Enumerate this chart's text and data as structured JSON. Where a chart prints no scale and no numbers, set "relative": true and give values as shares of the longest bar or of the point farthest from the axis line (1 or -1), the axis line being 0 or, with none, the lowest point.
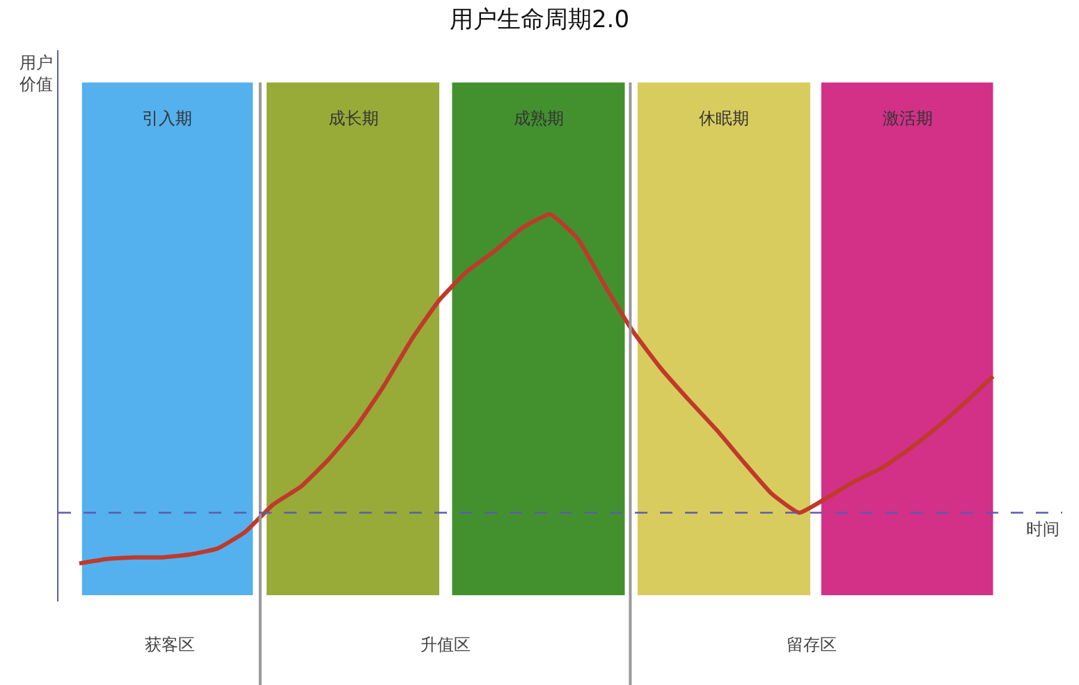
{
  "chart_data": {
    "type": "line",
    "title": "用户生命周期2.0",
    "xlabel": "时间",
    "relative": true,
    "categories": [
      null,
      null,
      null,
      null,
      null,
      null,
      null,
      null,
      null,
      null,
      null,
      null,
      null,
      null,
      null,
      null,
      null,
      null,
      null,
      null,
      null,
      null,
      null,
      null,
      null,
      null,
      null,
      null,
      null,
      null,
      null,
      null,
      null,
      null
    ],
    "series": [
      {
        "color": "#c0392b",
        "values": [
          -0.17,
          -0.155,
          -0.15,
          -0.15,
          -0.14,
          -0.12,
          -0.064,
          0.027,
          0.087,
          0.178,
          0.288,
          0.425,
          0.58,
          0.712,
          0.808,
          0.877,
          0.954,
          1,
          0.918,
          0.758,
          0.607,
          0.484,
          0.379,
          0.279,
          0.169,
          0.064,
          0,
          0.05,
          0.105,
          0.151,
          0.215,
          0.288,
          0.37,
          0.457
        ]
      }
    ],
    "ref_lines": [
      {
        "axis": "y",
        "value": 0,
        "color": "#5b5bb0",
        "line_style": "dashed"
      }
    ],
    "annotations": [
      "用户价值",
      "引入期",
      "成长期",
      "成熟期",
      "休眠期",
      "激活期",
      "获客区",
      "升值区",
      "留存区"
    ],
    "marker": "none",
    "line_style": "solid",
    "grid": false
  }
}
